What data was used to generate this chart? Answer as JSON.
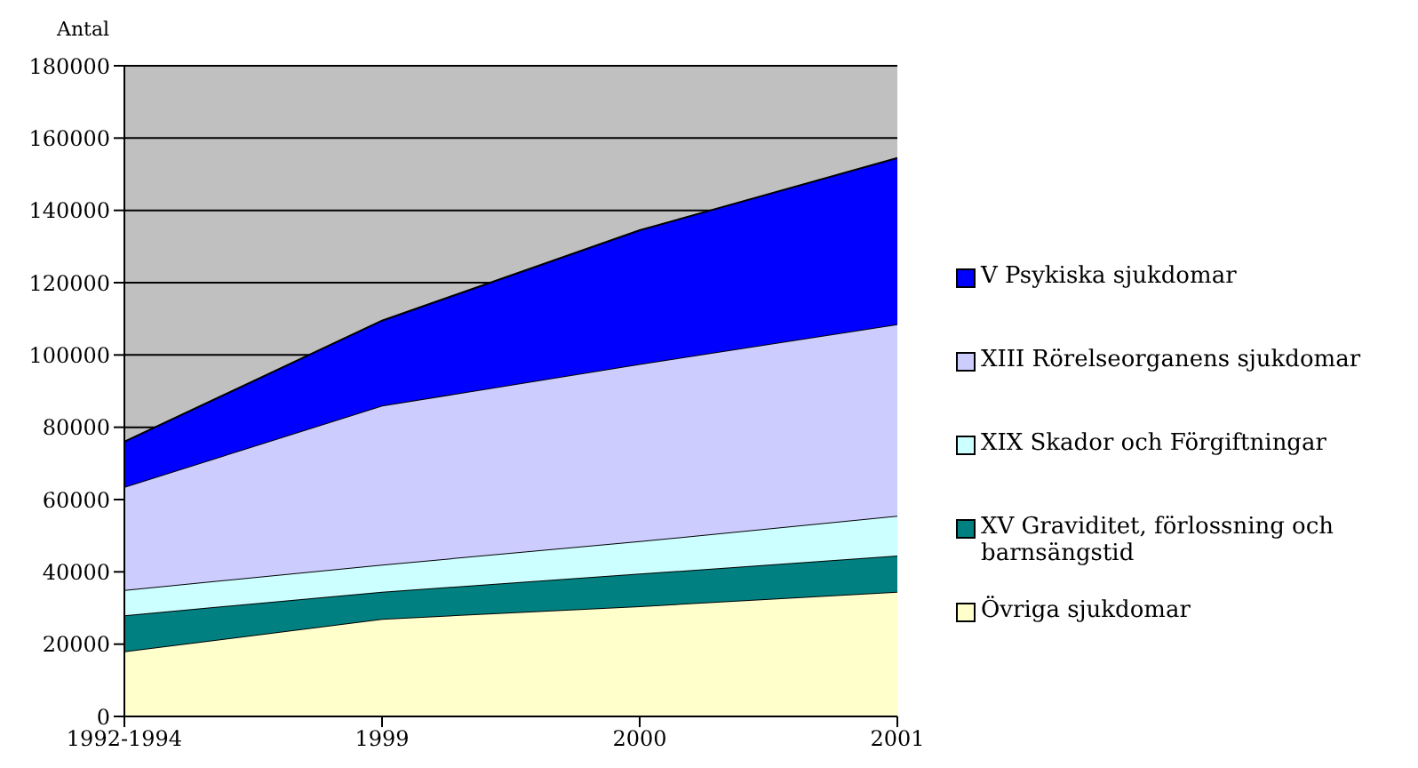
{
  "chart_data": {
    "type": "area",
    "stacked": true,
    "ylabel": "Antal",
    "categories": [
      "1992-1994",
      "1999",
      "2000",
      "2001"
    ],
    "ylim": [
      0,
      180000
    ],
    "yticks": [
      0,
      20000,
      40000,
      60000,
      80000,
      100000,
      120000,
      140000,
      160000,
      180000
    ],
    "grid": "y",
    "legend": "right",
    "series": [
      {
        "name": "Övriga sjukdomar",
        "color": "#ffffcc",
        "values": [
          18000,
          27000,
          30500,
          34500
        ]
      },
      {
        "name": "XV Graviditet, förlossning och barnsängstid",
        "color": "#008080",
        "values": [
          10000,
          7500,
          9000,
          10000
        ]
      },
      {
        "name": "XIX Skador och Förgiftningar",
        "color": "#ccffff",
        "values": [
          7000,
          7500,
          9000,
          11000
        ]
      },
      {
        "name": "XIII Rörelseorganens sjukdomar",
        "color": "#ccccff",
        "values": [
          28500,
          44000,
          49000,
          53000
        ]
      },
      {
        "name": "V Psykiska sjukdomar",
        "color": "#0000ff",
        "values": [
          12500,
          23500,
          37000,
          46000
        ]
      }
    ]
  }
}
